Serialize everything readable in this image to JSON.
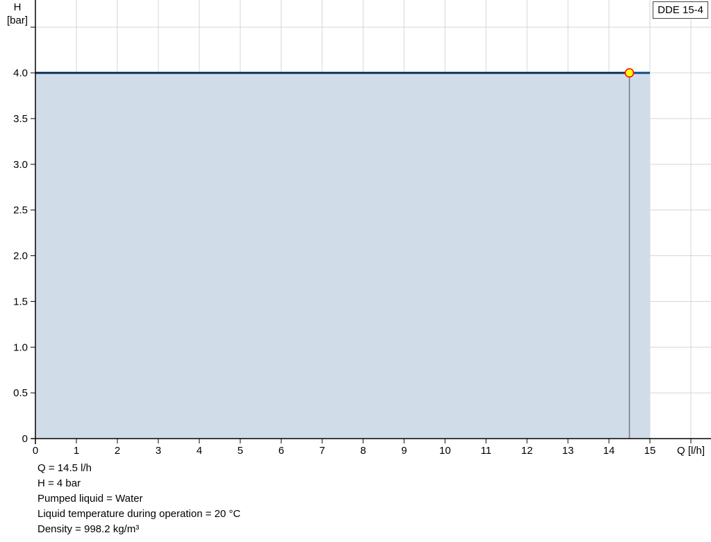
{
  "chart_data": {
    "type": "area",
    "title": "",
    "xlabel": "Q [l/h]",
    "ylabel_line1": "H",
    "ylabel_line2": "[bar]",
    "xlim": [
      0,
      16
    ],
    "ylim": [
      0,
      4.8
    ],
    "xticks": [
      0,
      1,
      2,
      3,
      4,
      5,
      6,
      7,
      8,
      9,
      10,
      11,
      12,
      13,
      14,
      15
    ],
    "yticks": [
      "0",
      "0.5",
      "1.0",
      "1.5",
      "2.0",
      "2.5",
      "3.0",
      "3.5",
      "4.0"
    ],
    "grid": true,
    "series": [
      {
        "name": "DDE 15-4",
        "x": [
          0,
          15
        ],
        "y": [
          4.0,
          4.0
        ],
        "color": "#0b4a86",
        "fill": "#d0dce8"
      }
    ],
    "operating_point": {
      "x": 14.5,
      "y": 4.0,
      "fill": "#ffff00",
      "stroke": "#ff0000"
    },
    "legend": {
      "label": "DDE 15-4",
      "placement": "top-right"
    }
  },
  "info": [
    "Q = 14.5 l/h",
    "H = 4 bar",
    "Pumped liquid = Water",
    "Liquid temperature during operation = 20 °C",
    "Density = 998.2 kg/m³"
  ]
}
